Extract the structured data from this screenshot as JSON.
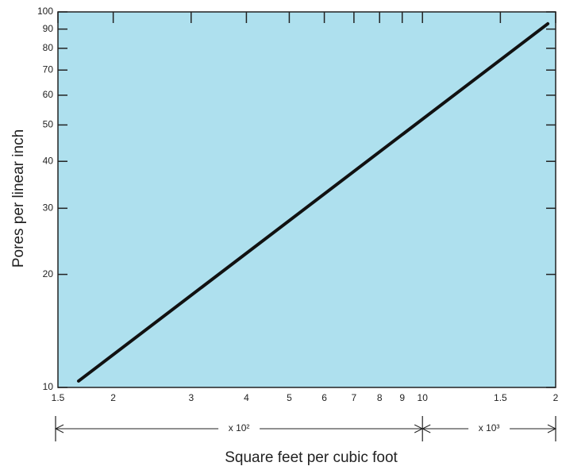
{
  "chart_data": {
    "type": "line",
    "xlabel": "Square feet per cubic foot",
    "ylabel": "Pores per linear inch",
    "x": [
      167,
      1920
    ],
    "series": [
      {
        "color": "#111111",
        "values": [
          10.4,
          93
        ]
      }
    ],
    "xlog": true,
    "ylog": true,
    "xlim": [
      150,
      2000
    ],
    "ylim": [
      10,
      100
    ],
    "xticks": [
      {
        "value": 150,
        "label": "1.5"
      },
      {
        "value": 200,
        "label": "2"
      },
      {
        "value": 300,
        "label": "3"
      },
      {
        "value": 400,
        "label": "4"
      },
      {
        "value": 500,
        "label": "5"
      },
      {
        "value": 600,
        "label": "6"
      },
      {
        "value": 700,
        "label": "7"
      },
      {
        "value": 800,
        "label": "8"
      },
      {
        "value": 900,
        "label": "9"
      },
      {
        "value": 1000,
        "label": "10"
      },
      {
        "value": 1500,
        "label": "1.5"
      },
      {
        "value": 2000,
        "label": "2"
      }
    ],
    "yticks": [
      10,
      20,
      30,
      40,
      50,
      60,
      70,
      80,
      90,
      100
    ],
    "annotations": [
      "x 10²",
      "x 10³"
    ],
    "background": "#aee0ee"
  }
}
